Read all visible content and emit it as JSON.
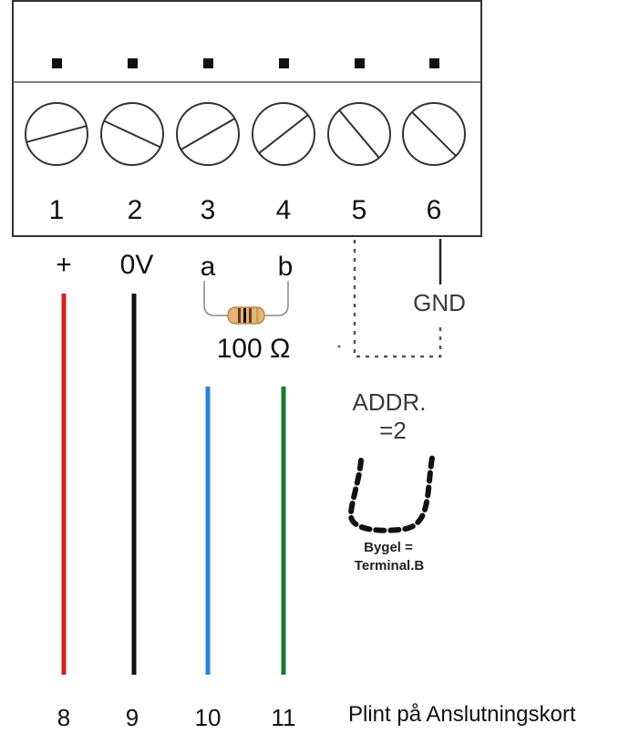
{
  "terminal_block": {
    "terminals": [
      {
        "number": "1",
        "screw_angle": 15
      },
      {
        "number": "2",
        "screw_angle": -25
      },
      {
        "number": "3",
        "screw_angle": 30
      },
      {
        "number": "4",
        "screw_angle": 38
      },
      {
        "number": "5",
        "screw_angle": -50
      },
      {
        "number": "6",
        "screw_angle": -45
      }
    ]
  },
  "signals": {
    "plus": "+",
    "zero_volt": "0V",
    "a": "a",
    "b": "b",
    "gnd": "GND"
  },
  "resistor": {
    "label": "100 Ω"
  },
  "address": {
    "line1": "ADDR.",
    "line2": "=2"
  },
  "jumper": {
    "line1": "Bygel =",
    "line2": "Terminal.B"
  },
  "wires": [
    {
      "label": "8",
      "color": "#d42020"
    },
    {
      "label": "9",
      "color": "#111111"
    },
    {
      "label": "10",
      "color": "#2a82d8"
    },
    {
      "label": "11",
      "color": "#1a7a2a"
    }
  ],
  "caption": "Plint på Anslutningskort"
}
